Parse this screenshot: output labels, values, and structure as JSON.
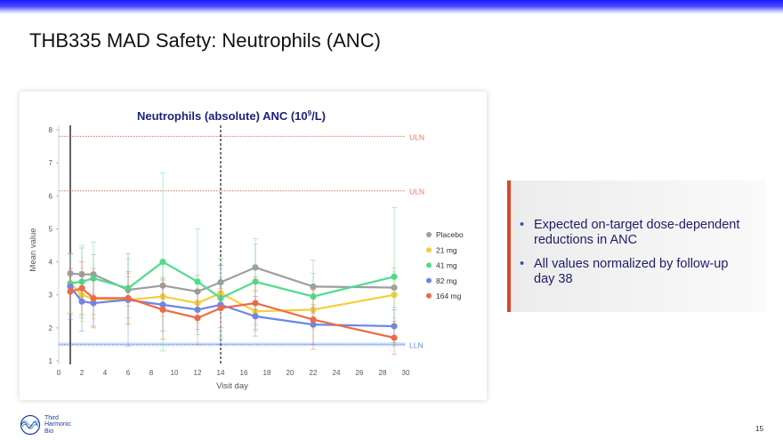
{
  "slide": {
    "title": "THB335 MAD Safety: Neutrophils (ANC)",
    "page_number": "15",
    "bullets": [
      "Expected on-target dose-dependent reductions in ANC",
      "All values normalized by follow-up day 38"
    ],
    "logo_lines": [
      "Third",
      "Harmonic",
      "Bio"
    ]
  },
  "chart_data": {
    "type": "line",
    "title_main": "Neutrophils (absolute) ANC (10",
    "title_sup": "9",
    "title_end": "/L)",
    "xlabel": "Visit day",
    "ylabel": "Mean value",
    "xlim": [
      0,
      30
    ],
    "ylim": [
      1,
      8
    ],
    "xticks": [
      0,
      2,
      4,
      6,
      8,
      10,
      12,
      14,
      16,
      18,
      20,
      22,
      24,
      26,
      28,
      30
    ],
    "yticks": [
      1,
      2,
      3,
      4,
      5,
      6,
      7,
      8
    ],
    "reference_lines": [
      {
        "label": "ULN",
        "y": 7.8,
        "color": "#e8735b"
      },
      {
        "label": "ULN",
        "y": 6.15,
        "color": "#e8735b"
      },
      {
        "label": "LLN",
        "y": 1.5,
        "color": "#5b8ff9"
      }
    ],
    "vertical_lines": [
      {
        "x": 1,
        "style": "solid"
      },
      {
        "x": 14,
        "style": "dashed"
      }
    ],
    "legend_position": "right",
    "series": [
      {
        "name": "Placebo",
        "color": "#9e9e9e",
        "x": [
          1,
          2,
          3,
          6,
          9,
          12,
          14,
          17,
          22,
          29
        ],
        "y": [
          3.65,
          3.62,
          3.62,
          3.15,
          3.28,
          3.1,
          3.38,
          3.83,
          3.25,
          3.22
        ],
        "err": [
          0.6,
          0.8,
          0.6,
          0.5,
          0.7,
          0.5,
          0.5,
          0.7,
          0.8,
          0.6
        ]
      },
      {
        "name": "21 mg",
        "color": "#f5cd3a",
        "x": [
          1,
          2,
          3,
          6,
          9,
          12,
          14,
          17,
          22,
          29
        ],
        "y": [
          3.35,
          3.0,
          2.88,
          2.85,
          2.95,
          2.75,
          3.05,
          2.5,
          2.55,
          3.0
        ],
        "err": [
          0.9,
          0.8,
          0.6,
          0.7,
          0.6,
          0.6,
          0.5,
          0.6,
          0.6,
          0.7
        ]
      },
      {
        "name": "41 mg",
        "color": "#4fdc8b",
        "x": [
          1,
          2,
          3,
          6,
          9,
          12,
          14,
          17,
          22,
          29
        ],
        "y": [
          3.35,
          3.4,
          3.5,
          3.2,
          4.0,
          3.4,
          2.9,
          3.4,
          2.95,
          3.55
        ],
        "err": [
          0.9,
          1.1,
          1.1,
          0.9,
          2.7,
          1.6,
          1.2,
          1.3,
          0.7,
          2.1
        ]
      },
      {
        "name": "82 mg",
        "color": "#6b86e8",
        "x": [
          1,
          2,
          3,
          6,
          9,
          12,
          14,
          17,
          22,
          29
        ],
        "y": [
          3.25,
          2.8,
          2.75,
          2.85,
          2.7,
          2.55,
          2.7,
          2.35,
          2.1,
          2.05
        ],
        "err": [
          1.0,
          0.9,
          0.7,
          1.4,
          0.8,
          0.6,
          1.2,
          0.6,
          0.6,
          0.5
        ]
      },
      {
        "name": "164 mg",
        "color": "#ee6a49",
        "x": [
          1,
          2,
          3,
          6,
          9,
          12,
          14,
          17,
          22,
          29
        ],
        "y": [
          3.1,
          3.2,
          2.9,
          2.9,
          2.55,
          2.3,
          2.6,
          2.75,
          2.25,
          1.7
        ],
        "err": [
          0.7,
          0.8,
          0.9,
          0.8,
          0.9,
          0.8,
          0.6,
          0.8,
          0.9,
          0.5
        ]
      }
    ]
  }
}
